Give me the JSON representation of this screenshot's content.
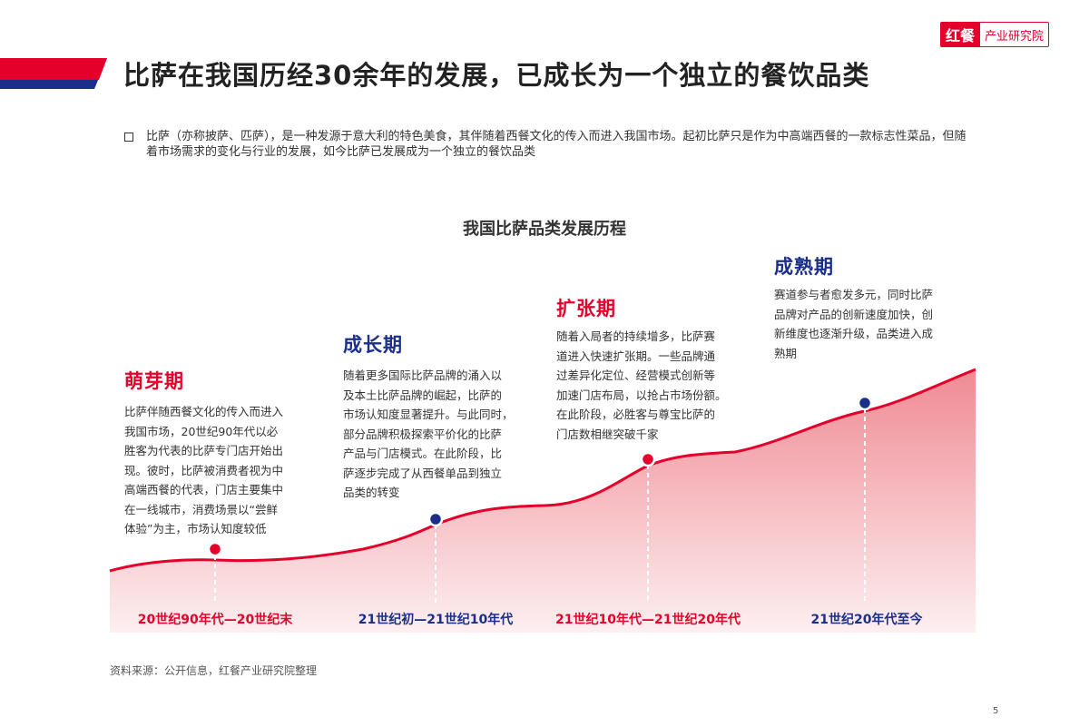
{
  "header": {
    "title": "比萨在我国历经30余年的发展，已成长为一个独立的餐饮品类",
    "logo_mark": "红餐",
    "logo_text": "产业研究院"
  },
  "intro": {
    "text": "比萨（亦称披萨、匹萨），是一种发源于意大利的特色美食，其伴随着西餐文化的传入而进入我国市场。起初比萨只是作为中高端西餐的一款标志性菜品，但随着市场需求的变化与行业的发展，如今比萨已发展成为一个独立的餐饮品类"
  },
  "chart": {
    "title": "我国比萨品类发展历程"
  },
  "colors": {
    "red": "#e4002b",
    "navy": "#1b2f8a",
    "area_top": "#f08a93",
    "area_bottom": "#fdeff0"
  },
  "stages": [
    {
      "name": "萌芽期",
      "color": "red",
      "period": "20世纪90年代—20世纪末",
      "desc": [
        "比萨伴随西餐文化的传入而进入",
        "我国市场，20世纪90年代以必",
        "胜客为代表的比萨专门店开始出",
        "现。彼时，比萨被消费者视为中",
        "高端西餐的代表，门店主要集中",
        "在一线城市，消费场景以“尝鲜",
        "体验”为主，市场认知度较低"
      ]
    },
    {
      "name": "成长期",
      "color": "blue",
      "period": "21世纪初—21世纪10年代",
      "desc": [
        "随着更多国际比萨品牌的涌入以",
        "及本土比萨品牌的崛起，比萨的",
        "市场认知度显著提升。与此同时，",
        "部分品牌积极探索平价化的比萨",
        "产品与门店模式。在此阶段，比",
        "萨逐步完成了从西餐单品到独立",
        "品类的转变"
      ]
    },
    {
      "name": "扩张期",
      "color": "red",
      "period": "21世纪10年代—21世纪20年代",
      "desc": [
        "随着入局者的持续增多，比萨赛",
        "道进入快速扩张期。一些品牌通",
        "过差异化定位、经营模式创新等",
        "加速门店布局，以抢占市场份额。",
        "在此阶段，必胜客与尊宝比萨的",
        "门店数相继突破千家"
      ]
    },
    {
      "name": "成熟期",
      "color": "blue",
      "period": "21世纪20年代至今",
      "desc": [
        "赛道参与者愈发多元，同时比萨",
        "品牌对产品的创新速度加快，创",
        "新维度也逐渐升级，品类进入成",
        "熟期"
      ]
    }
  ],
  "source": "资料来源：公开信息，红餐产业研究院整理",
  "page_number": "5"
}
